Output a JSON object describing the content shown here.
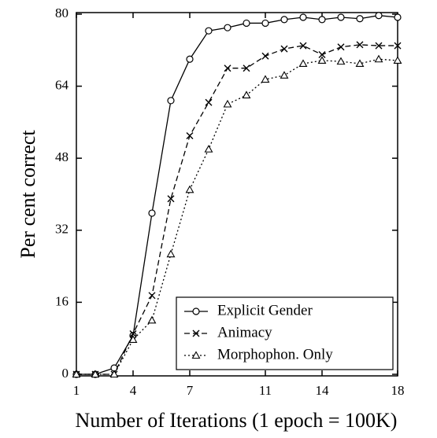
{
  "chart_data": {
    "type": "line",
    "xlabel": "Number of Iterations (1 epoch = 100K)",
    "ylabel": "Per cent correct",
    "x": [
      1,
      2,
      3,
      4,
      5,
      6,
      7,
      8,
      9,
      10,
      11,
      12,
      13,
      14,
      15,
      16,
      17,
      18
    ],
    "series": [
      {
        "name": "Explicit Gender",
        "color": "#000000",
        "marker": "circle",
        "line_style": "solid",
        "values": [
          0,
          0,
          1.4,
          8.6,
          35.8,
          60.8,
          70,
          76.3,
          77,
          78,
          78,
          78.8,
          79.3,
          78.8,
          79.3,
          79,
          79.7,
          79.3
        ]
      },
      {
        "name": "Animacy",
        "color": "#000000",
        "marker": "x",
        "line_style": "dashed",
        "values": [
          0,
          0,
          0,
          9,
          17.5,
          39,
          53,
          60.4,
          68,
          68,
          70.7,
          72.3,
          73,
          71,
          72.7,
          73.2,
          73,
          73
        ]
      },
      {
        "name": "Morphophon. Only",
        "color": "#000000",
        "marker": "triangle",
        "line_style": "dotted",
        "values": [
          0,
          0,
          0,
          7.7,
          12,
          26.7,
          41,
          50,
          60,
          62,
          65.5,
          66.4,
          69,
          69.7,
          69.5,
          69,
          70,
          69.7
        ]
      }
    ],
    "xlim": [
      1,
      18
    ],
    "xticks": [
      1,
      4,
      7,
      11,
      14,
      18
    ],
    "ylim": [
      0,
      80
    ],
    "yticks": [
      0,
      16,
      32,
      48,
      64,
      80
    ],
    "legend": "lower right"
  }
}
